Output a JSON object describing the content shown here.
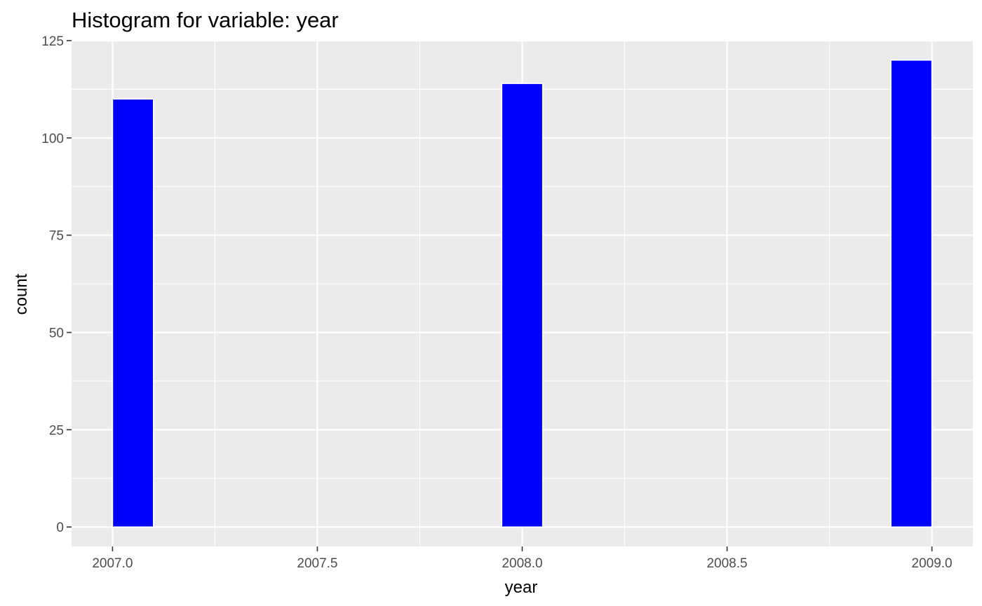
{
  "chart_data": {
    "type": "bar",
    "title": "Histogram for variable: year",
    "xlabel": "year",
    "ylabel": "count",
    "xlim": [
      2006.9,
      2009.1
    ],
    "ylim": [
      -5,
      125
    ],
    "x_ticks": [
      "2007.0",
      "2007.5",
      "2008.0",
      "2008.5",
      "2009.0"
    ],
    "y_ticks": [
      "0",
      "25",
      "50",
      "75",
      "100",
      "125"
    ],
    "bars": [
      {
        "x0": 2007.0,
        "x1": 2007.1,
        "count": 110
      },
      {
        "x0": 2007.95,
        "x1": 2008.05,
        "count": 114
      },
      {
        "x0": 2008.9,
        "x1": 2009.0,
        "count": 120
      }
    ],
    "bar_fill": "#0000ff",
    "bar_outline": "#ffffff",
    "panel_background": "#ebebeb",
    "grid_color": "#ffffff",
    "grid": true,
    "legend": "none"
  }
}
